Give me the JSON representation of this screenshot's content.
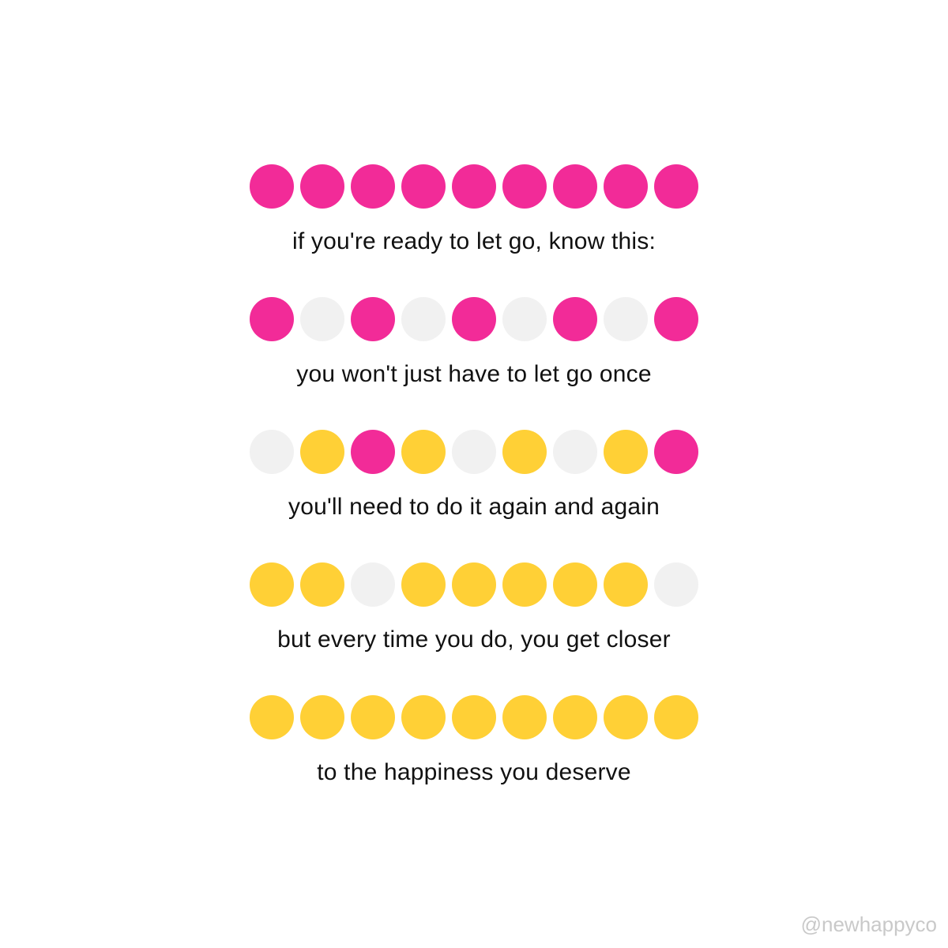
{
  "colors": {
    "pink": "#f22b98",
    "yellow": "#ffd036",
    "grey": "#f1f1f1"
  },
  "rows": [
    {
      "dots": [
        "pink",
        "pink",
        "pink",
        "pink",
        "pink",
        "pink",
        "pink",
        "pink",
        "pink"
      ],
      "text": "if you're ready to let go, know this:"
    },
    {
      "dots": [
        "pink",
        "grey",
        "pink",
        "grey",
        "pink",
        "grey",
        "pink",
        "grey",
        "pink"
      ],
      "text": "you won't just have to let go once"
    },
    {
      "dots": [
        "grey",
        "yellow",
        "pink",
        "yellow",
        "grey",
        "yellow",
        "grey",
        "yellow",
        "pink"
      ],
      "text": "you'll need to do it again and again"
    },
    {
      "dots": [
        "yellow",
        "yellow",
        "grey",
        "yellow",
        "yellow",
        "yellow",
        "yellow",
        "yellow",
        "grey"
      ],
      "text": "but every time you do, you get closer"
    },
    {
      "dots": [
        "yellow",
        "yellow",
        "yellow",
        "yellow",
        "yellow",
        "yellow",
        "yellow",
        "yellow",
        "yellow"
      ],
      "text": "to the happiness you deserve"
    }
  ],
  "watermark": "@newhappyco"
}
